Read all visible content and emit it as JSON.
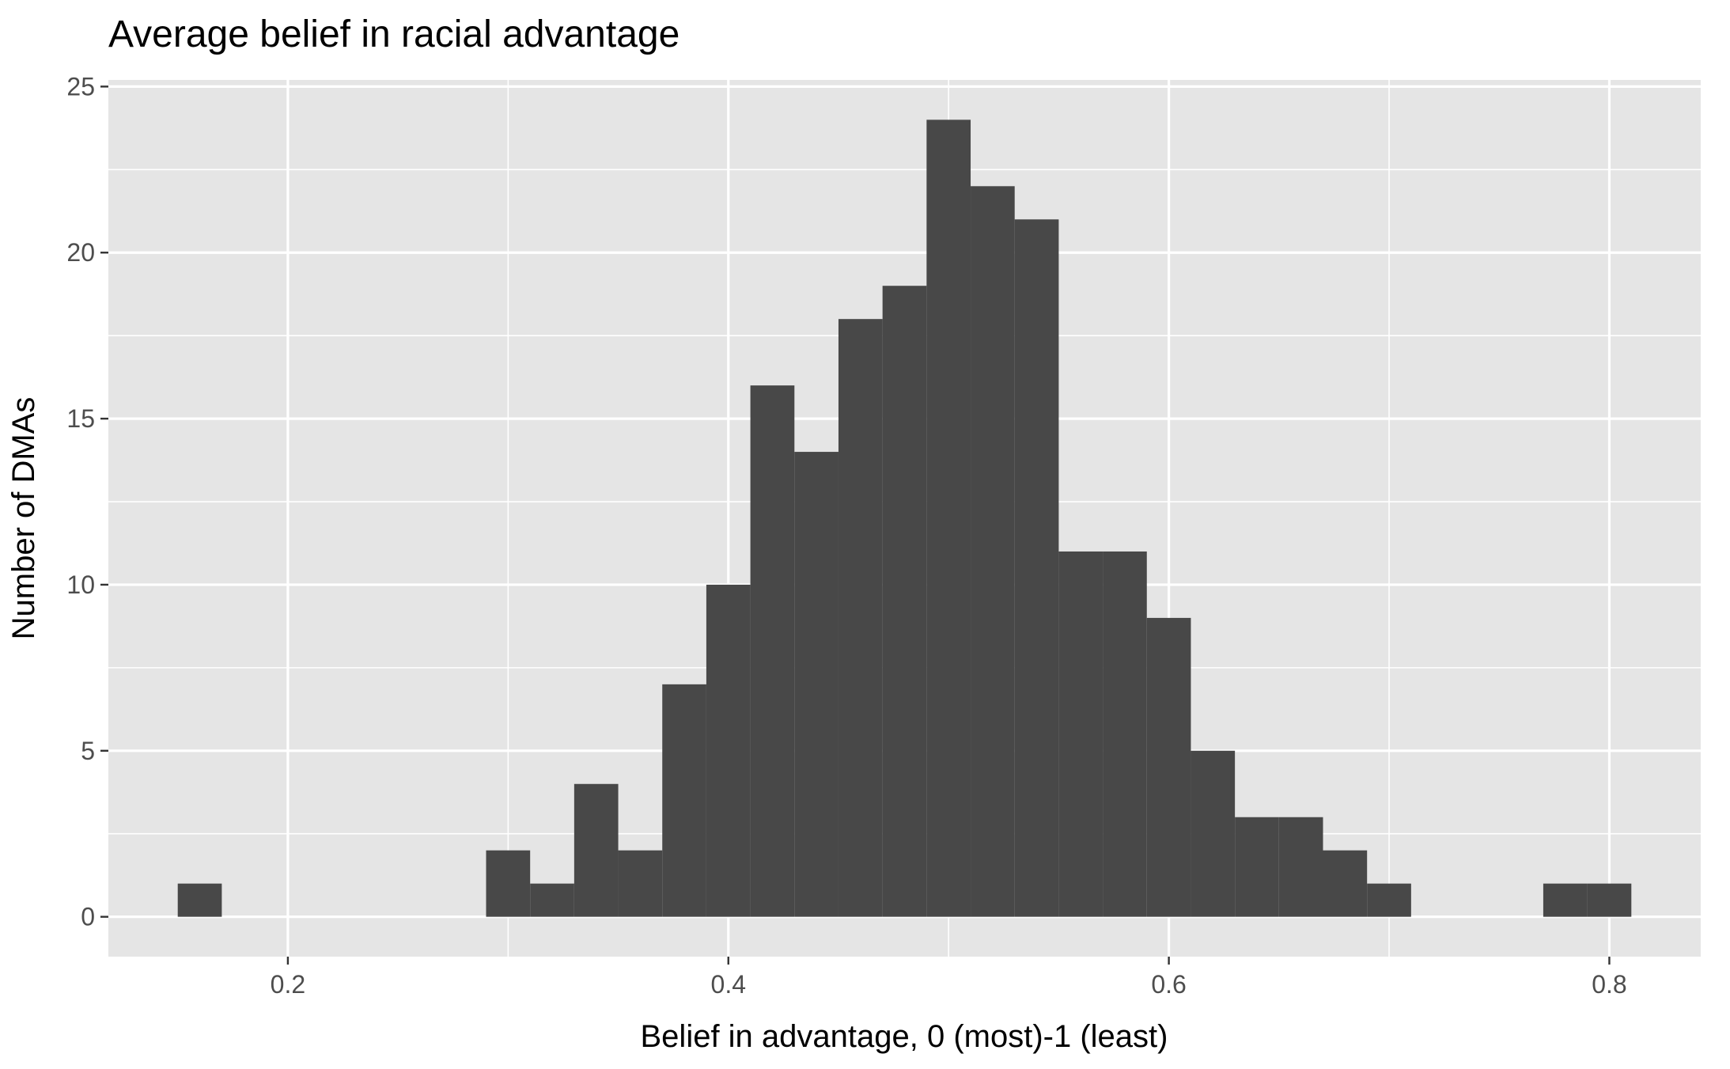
{
  "chart_data": {
    "type": "bar",
    "title": "Average belief in racial advantage",
    "xlabel": "Belief in advantage, 0 (most)-1 (least)",
    "ylabel": "Number of DMAs",
    "bin_width": 0.02,
    "bins": [
      {
        "x": 0.16,
        "count": 1
      },
      {
        "x": 0.18,
        "count": 0
      },
      {
        "x": 0.2,
        "count": 0
      },
      {
        "x": 0.22,
        "count": 0
      },
      {
        "x": 0.24,
        "count": 0
      },
      {
        "x": 0.26,
        "count": 0
      },
      {
        "x": 0.28,
        "count": 0
      },
      {
        "x": 0.3,
        "count": 2
      },
      {
        "x": 0.32,
        "count": 1
      },
      {
        "x": 0.34,
        "count": 4
      },
      {
        "x": 0.36,
        "count": 2
      },
      {
        "x": 0.38,
        "count": 7
      },
      {
        "x": 0.4,
        "count": 10
      },
      {
        "x": 0.42,
        "count": 16
      },
      {
        "x": 0.44,
        "count": 14
      },
      {
        "x": 0.46,
        "count": 18
      },
      {
        "x": 0.48,
        "count": 19
      },
      {
        "x": 0.5,
        "count": 24
      },
      {
        "x": 0.52,
        "count": 22
      },
      {
        "x": 0.54,
        "count": 21
      },
      {
        "x": 0.56,
        "count": 11
      },
      {
        "x": 0.58,
        "count": 11
      },
      {
        "x": 0.6,
        "count": 9
      },
      {
        "x": 0.62,
        "count": 5
      },
      {
        "x": 0.64,
        "count": 3
      },
      {
        "x": 0.66,
        "count": 3
      },
      {
        "x": 0.68,
        "count": 2
      },
      {
        "x": 0.7,
        "count": 1
      },
      {
        "x": 0.72,
        "count": 0
      },
      {
        "x": 0.74,
        "count": 0
      },
      {
        "x": 0.76,
        "count": 0
      },
      {
        "x": 0.78,
        "count": 1
      },
      {
        "x": 0.8,
        "count": 1
      }
    ],
    "xlim": [
      0.1185,
      0.8415
    ],
    "ylim": [
      -1.2,
      25.2
    ],
    "x_ticks": [
      0.2,
      0.4,
      0.6,
      0.8
    ],
    "x_tick_labels": [
      "0.2",
      "0.4",
      "0.6",
      "0.8"
    ],
    "y_ticks": [
      0,
      5,
      10,
      15,
      20,
      25
    ],
    "y_tick_labels": [
      "0",
      "5",
      "10",
      "15",
      "20",
      "25"
    ],
    "grid": true,
    "legend": "none",
    "colors": {
      "panel_background": "#e5e5e5",
      "grid_line": "#ffffff",
      "bar_fill": "#484848",
      "tick_label": "#4d4d4d",
      "tick_mark": "#333333",
      "text": "#000000"
    }
  }
}
